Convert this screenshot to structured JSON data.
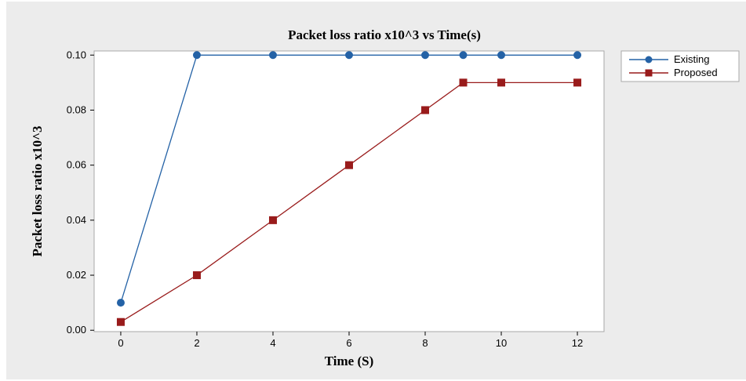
{
  "chart_data": {
    "type": "line",
    "title": "Packet loss ratio x10^3 vs Time(s)",
    "xlabel": "Time (S)",
    "ylabel": "Packet loss ratio x10^3",
    "x_ticks": [
      "0",
      "2",
      "4",
      "6",
      "8",
      "10",
      "12"
    ],
    "y_ticks": [
      "0.00",
      "0.02",
      "0.04",
      "0.06",
      "0.08",
      "0.10"
    ],
    "xlim": [
      -0.7,
      12.7
    ],
    "ylim": [
      -0.0005,
      0.1015
    ],
    "grid": false,
    "legend_position": "top-right, outside plot",
    "series": [
      {
        "name": "Existing",
        "marker": "circle",
        "color": "#2462a6",
        "x": [
          0,
          2,
          4,
          6,
          8,
          9,
          10,
          12
        ],
        "y": [
          0.01,
          0.1,
          0.1,
          0.1,
          0.1,
          0.1,
          0.1,
          0.1
        ]
      },
      {
        "name": "Proposed",
        "marker": "square",
        "color": "#991b1b",
        "x": [
          0,
          2,
          4,
          6,
          8,
          9,
          10,
          12
        ],
        "y": [
          0.003,
          0.02,
          0.04,
          0.06,
          0.08,
          0.09,
          0.09,
          0.09
        ]
      }
    ]
  },
  "colors": {
    "background": "#ececec",
    "plot_background": "#ffffff",
    "frame": "#a8a8a8"
  }
}
